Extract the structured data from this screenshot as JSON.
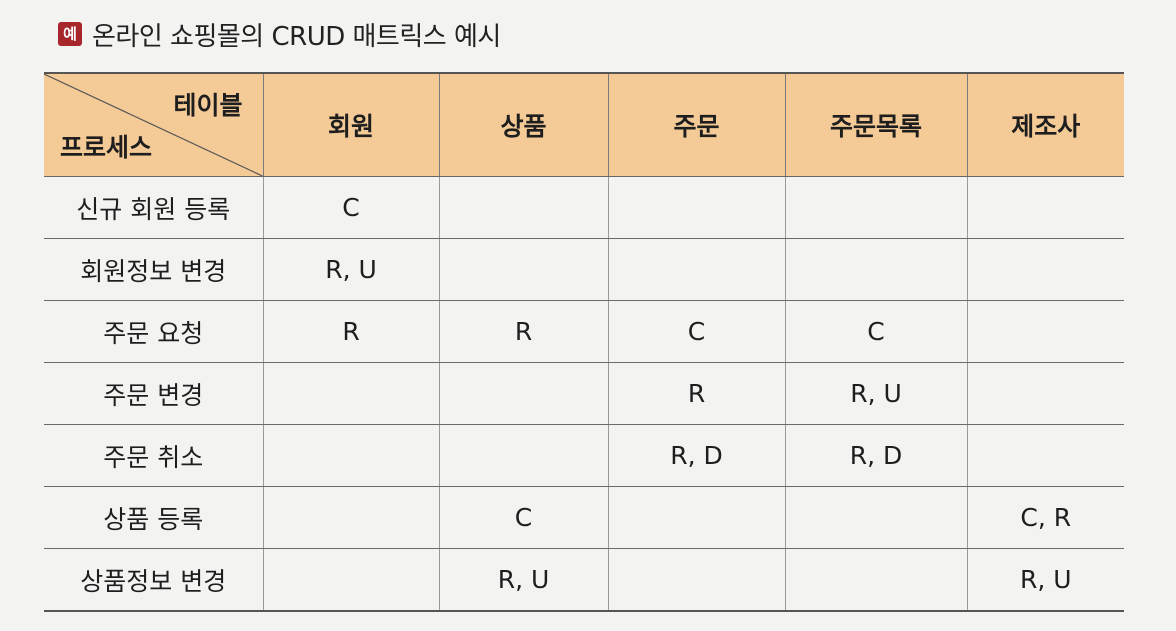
{
  "caption": {
    "badge": "예",
    "text": "온라인 쇼핑몰의 CRUD 매트릭스 예시"
  },
  "table": {
    "corner_top": "테이블",
    "corner_bottom": "프로세스",
    "columns": [
      "회원",
      "상품",
      "주문",
      "주문목록",
      "제조사"
    ],
    "rows": [
      {
        "process": "신규 회원 등록",
        "cells": [
          "C",
          "",
          "",
          "",
          ""
        ]
      },
      {
        "process": "회원정보 변경",
        "cells": [
          "R, U",
          "",
          "",
          "",
          ""
        ]
      },
      {
        "process": "주문 요청",
        "cells": [
          "R",
          "R",
          "C",
          "C",
          ""
        ]
      },
      {
        "process": "주문 변경",
        "cells": [
          "",
          "",
          "R",
          "R, U",
          ""
        ]
      },
      {
        "process": "주문 취소",
        "cells": [
          "",
          "",
          "R, D",
          "R, D",
          ""
        ]
      },
      {
        "process": "상품 등록",
        "cells": [
          "",
          "C",
          "",
          "",
          "C, R"
        ]
      },
      {
        "process": "상품정보 변경",
        "cells": [
          "",
          "R, U",
          "",
          "",
          "R, U"
        ]
      }
    ]
  }
}
